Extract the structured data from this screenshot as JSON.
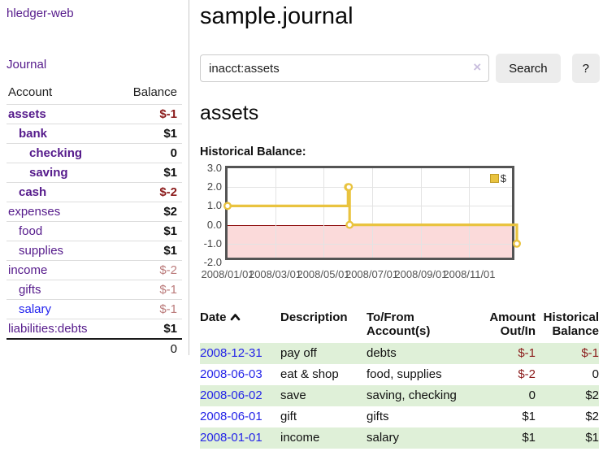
{
  "app_title": "hledger-web",
  "sidebar": {
    "journal_link": "Journal",
    "accounts": {
      "header_account": "Account",
      "header_balance": "Balance",
      "rows": [
        {
          "name": "assets",
          "indent": 1,
          "name_bold": true,
          "name_color": "purple",
          "balance": "$-1",
          "balance_bold": true,
          "balance_style": "negative-strong"
        },
        {
          "name": "bank",
          "indent": 2,
          "name_bold": true,
          "name_color": "purple",
          "balance": "$1",
          "balance_bold": true,
          "balance_style": "normal"
        },
        {
          "name": "checking",
          "indent": 3,
          "name_bold": true,
          "name_color": "purple",
          "balance": "0",
          "balance_bold": true,
          "balance_style": "normal"
        },
        {
          "name": "saving",
          "indent": 3,
          "name_bold": true,
          "name_color": "purple",
          "balance": "$1",
          "balance_bold": true,
          "balance_style": "normal"
        },
        {
          "name": "cash",
          "indent": 2,
          "name_bold": true,
          "name_color": "purple",
          "balance": "$-2",
          "balance_bold": true,
          "balance_style": "negative-strong"
        },
        {
          "name": "expenses",
          "indent": 1,
          "name_bold": false,
          "name_color": "purple",
          "balance": "$2",
          "balance_bold": true,
          "balance_style": "normal"
        },
        {
          "name": "food",
          "indent": 2,
          "name_bold": false,
          "name_color": "purple",
          "balance": "$1",
          "balance_bold": true,
          "balance_style": "normal"
        },
        {
          "name": "supplies",
          "indent": 2,
          "name_bold": false,
          "name_color": "purple",
          "balance": "$1",
          "balance_bold": true,
          "balance_style": "normal"
        },
        {
          "name": "income",
          "indent": 1,
          "name_bold": false,
          "name_color": "purple",
          "balance": "$-2",
          "balance_bold": false,
          "balance_style": "negative-soft"
        },
        {
          "name": "gifts",
          "indent": 2,
          "name_bold": false,
          "name_color": "purple",
          "balance": "$-1",
          "balance_bold": false,
          "balance_style": "negative-soft"
        },
        {
          "name": "salary",
          "indent": 2,
          "name_bold": false,
          "name_color": "blue",
          "balance": "$-1",
          "balance_bold": false,
          "balance_style": "negative-soft"
        },
        {
          "name": "liabilities:debts",
          "indent": 1,
          "name_bold": false,
          "name_color": "purple",
          "balance": "$1",
          "balance_bold": true,
          "balance_style": "normal"
        }
      ],
      "total": "0"
    }
  },
  "main": {
    "title": "sample.journal",
    "search": {
      "value": "inacct:assets",
      "clear_icon": "×",
      "search_button": "Search",
      "help_button": "?"
    },
    "account_heading": "assets",
    "chart_title": "Historical Balance:"
  },
  "chart_data": {
    "type": "line",
    "step": true,
    "title": "Historical Balance",
    "x_range": [
      "2008-01-01",
      "2008-12-31"
    ],
    "ylim": [
      -2.0,
      3.0
    ],
    "yticks": [
      3.0,
      2.0,
      1.0,
      0.0,
      -1.0,
      -2.0
    ],
    "xticks": [
      {
        "label": "2008/01/01",
        "date": "2008-01-01"
      },
      {
        "label": "2008/03/01",
        "date": "2008-03-01"
      },
      {
        "label": "2008/05/01",
        "date": "2008-05-01"
      },
      {
        "label": "2008/07/01",
        "date": "2008-07-01"
      },
      {
        "label": "2008/09/01",
        "date": "2008-09-01"
      },
      {
        "label": "2008/11/01",
        "date": "2008-11-01"
      }
    ],
    "series": [
      {
        "name": "$",
        "color": "#e9c33f",
        "points": [
          {
            "date": "2008-01-01",
            "value": 1
          },
          {
            "date": "2008-06-01",
            "value": 2
          },
          {
            "date": "2008-06-02",
            "value": 2
          },
          {
            "date": "2008-06-03",
            "value": 0
          },
          {
            "date": "2008-12-31",
            "value": -1
          }
        ]
      }
    ],
    "legend": {
      "label": "$",
      "position": "top-right"
    },
    "zero_line_color": "#8f1010",
    "negative_region_color": "#fbdada",
    "grid": true
  },
  "register": {
    "headers": {
      "date": "Date",
      "description": "Description",
      "accounts": "To/From Account(s)",
      "amount": "Amount Out/In",
      "balance": "Historical Balance"
    },
    "sort": {
      "column": "date",
      "direction": "ascending"
    },
    "rows": [
      {
        "date": "2008-12-31",
        "description": "pay off",
        "accounts": "debts",
        "amount": "$-1",
        "amount_negative": true,
        "balance": "$-1",
        "balance_negative": true
      },
      {
        "date": "2008-06-03",
        "description": "eat & shop",
        "accounts": "food, supplies",
        "amount": "$-2",
        "amount_negative": true,
        "balance": "0",
        "balance_negative": false
      },
      {
        "date": "2008-06-02",
        "description": "save",
        "accounts": "saving, checking",
        "amount": "0",
        "amount_negative": false,
        "balance": "$2",
        "balance_negative": false
      },
      {
        "date": "2008-06-01",
        "description": "gift",
        "accounts": "gifts",
        "amount": "$1",
        "amount_negative": false,
        "balance": "$2",
        "balance_negative": false
      },
      {
        "date": "2008-01-01",
        "description": "income",
        "accounts": "salary",
        "amount": "$1",
        "amount_negative": false,
        "balance": "$1",
        "balance_negative": false
      }
    ]
  }
}
